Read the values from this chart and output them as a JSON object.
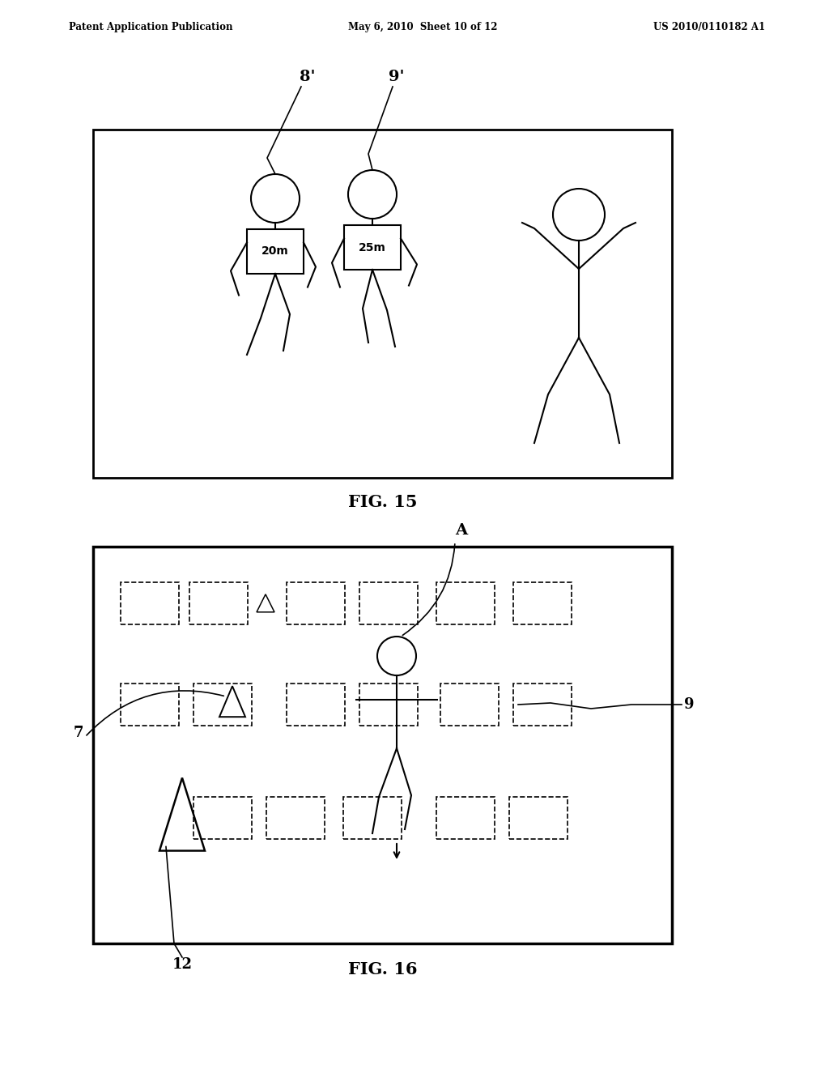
{
  "bg_color": "#ffffff",
  "line_color": "#000000",
  "header_left": "Patent Application Publication",
  "header_mid": "May 6, 2010  Sheet 10 of 12",
  "header_right": "US 2010/0110182 A1",
  "fig15_label": "FIG. 15",
  "fig16_label": "FIG. 16",
  "label_8prime": "8'",
  "label_9prime": "9'",
  "label_A": "A",
  "label_7": "7",
  "label_9": "9",
  "label_12": "12",
  "label_20m": "20m",
  "label_25m": "25m"
}
